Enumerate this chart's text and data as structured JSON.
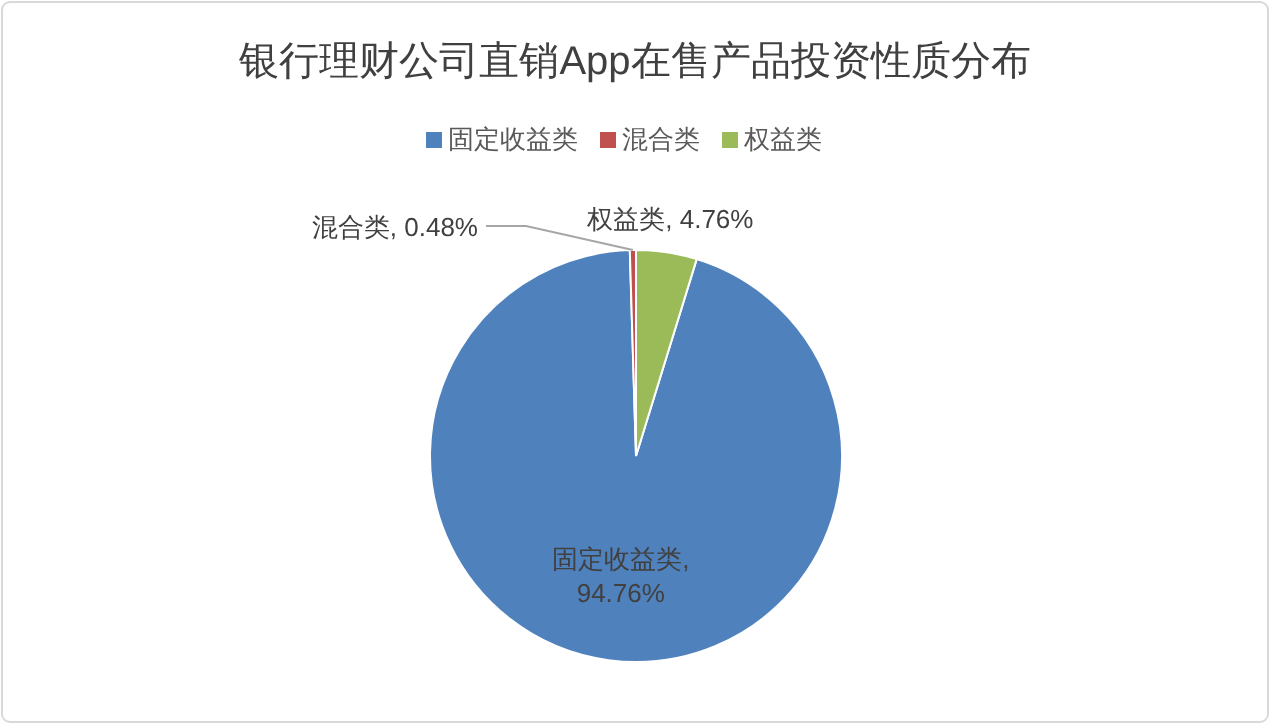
{
  "chart_data": {
    "type": "pie",
    "title": "银行理财公司直销App在售产品投资性质分布",
    "categories": [
      "固定收益类",
      "混合类",
      "权益类"
    ],
    "values": [
      94.76,
      0.48,
      4.76
    ],
    "colors": [
      "#4f81bd",
      "#c0504d",
      "#9bbb59"
    ],
    "value_labels": [
      "固定收益类, 94.76%",
      "混合类, 0.48%",
      "权益类, 4.76%"
    ],
    "legend": "top"
  }
}
